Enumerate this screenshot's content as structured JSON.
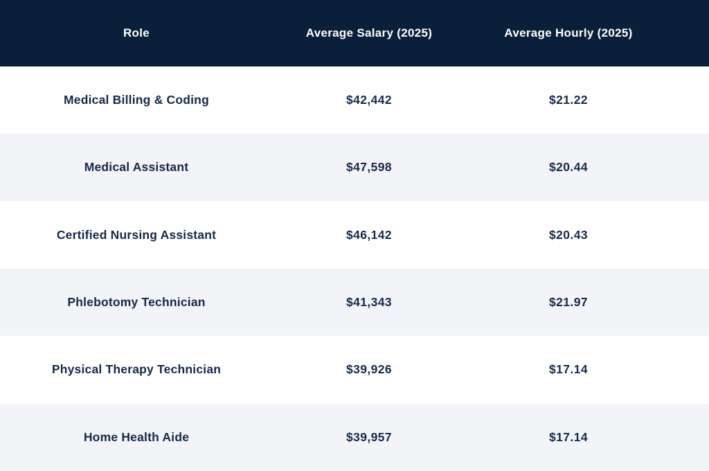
{
  "colors": {
    "header_bg": "#0a1f3a",
    "header_text": "#ffffff",
    "row_text": "#14294b",
    "row_bg": "#ffffff",
    "row_alt_bg": "#f2f4f8"
  },
  "table": {
    "columns": [
      "Role",
      "Average Salary (2025)",
      "Average Hourly (2025)"
    ],
    "rows": [
      {
        "role": "Medical Billing & Coding",
        "salary": "$42,442",
        "hourly": "$21.22"
      },
      {
        "role": "Medical Assistant",
        "salary": "$47,598",
        "hourly": "$20.44"
      },
      {
        "role": "Certified Nursing Assistant",
        "salary": "$46,142",
        "hourly": "$20.43"
      },
      {
        "role": "Phlebotomy Technician",
        "salary": "$41,343",
        "hourly": "$21.97"
      },
      {
        "role": "Physical Therapy Technician",
        "salary": "$39,926",
        "hourly": "$17.14"
      },
      {
        "role": "Home Health Aide",
        "salary": "$39,957",
        "hourly": "$17.14"
      }
    ]
  },
  "chart_data": {
    "type": "table",
    "title": "",
    "columns": [
      "Role",
      "Average Salary (2025)",
      "Average Hourly (2025)"
    ],
    "rows": [
      [
        "Medical Billing & Coding",
        "$42,442",
        "$21.22"
      ],
      [
        "Medical Assistant",
        "$47,598",
        "$20.44"
      ],
      [
        "Certified Nursing Assistant",
        "$46,142",
        "$20.43"
      ],
      [
        "Phlebotomy Technician",
        "$41,343",
        "$21.97"
      ],
      [
        "Physical Therapy Technician",
        "$39,926",
        "$17.14"
      ],
      [
        "Home Health Aide",
        "$39,957",
        "$17.14"
      ]
    ],
    "salary_values_usd": [
      42442,
      47598,
      46142,
      41343,
      39926,
      39957
    ],
    "hourly_values_usd": [
      21.22,
      20.44,
      20.43,
      21.97,
      17.14,
      17.14
    ]
  }
}
